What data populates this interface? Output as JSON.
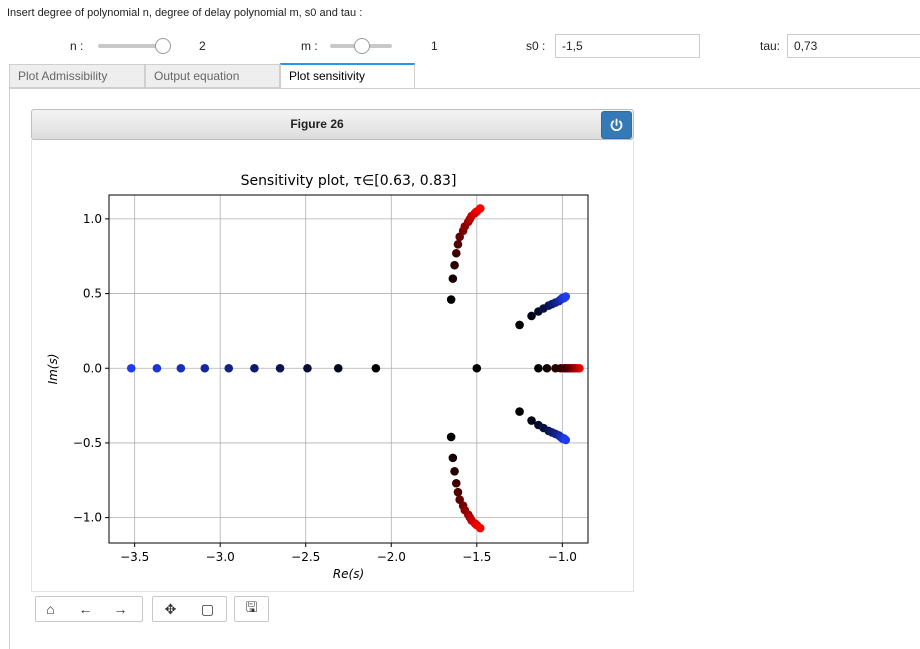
{
  "instruction": "Insert degree of polynomial n, degree of delay polynomial m, s0 and tau :",
  "controls": {
    "n_label": "n :",
    "n_value": "2",
    "m_label": "m :",
    "m_value": "1",
    "s0_label": "s0 :",
    "s0_value": "-1,5",
    "tau_label": "tau:",
    "tau_value": "0,73",
    "n_slider_fraction": 1.0,
    "m_slider_fraction": 0.5
  },
  "tabs": [
    {
      "label": "Plot Admissibility",
      "active": false
    },
    {
      "label": "Output equation",
      "active": false
    },
    {
      "label": "Plot sensitivity",
      "active": true
    }
  ],
  "figure": {
    "title": "Figure 26",
    "power_icon": "power-icon"
  },
  "toolbar": [
    {
      "name": "home-icon",
      "glyph": "⌂"
    },
    {
      "name": "back-icon",
      "glyph": "←"
    },
    {
      "name": "forward-icon",
      "glyph": "→"
    },
    {
      "name": "pan-icon",
      "glyph": "✥"
    },
    {
      "name": "zoom-rect-icon",
      "glyph": "▢"
    },
    {
      "name": "save-icon",
      "glyph": "🖫"
    }
  ],
  "chart_data": {
    "type": "scatter",
    "title": "Sensitivity plot, τ∈[0.63, 0.83]",
    "xlabel": "Re(s)",
    "ylabel": "Im(s)",
    "xlim": [
      -3.65,
      -0.85
    ],
    "ylim": [
      -1.17,
      1.16
    ],
    "xticks": [
      -3.5,
      -3.0,
      -2.5,
      -2.0,
      -1.5,
      -1.0
    ],
    "xtick_labels": [
      "−3.5",
      "−3.0",
      "−2.5",
      "−2.0",
      "−1.5",
      "−1.0"
    ],
    "yticks": [
      -1.0,
      -0.5,
      0.0,
      0.5,
      1.0
    ],
    "ytick_labels": [
      "−1.0",
      "−0.5",
      "0.0",
      "0.5",
      "1.0"
    ],
    "grid": true,
    "colors": {
      "low_tau": "#000000",
      "red_end": "#ff0000",
      "blue_end": "#1f3cf0"
    },
    "series": [
      {
        "color_family": "blue",
        "x": [
          -3.52,
          -3.37,
          -3.23,
          -3.09,
          -2.95,
          -2.8,
          -2.65,
          -2.49,
          -2.31,
          -2.09
        ],
        "y": [
          0,
          0,
          0,
          0,
          0,
          0,
          0,
          0,
          0,
          0
        ]
      },
      {
        "color_family": "red",
        "x": [
          -0.9,
          -0.91,
          -0.92,
          -0.93,
          -0.94,
          -0.95,
          -0.96,
          -0.97,
          -0.98,
          -0.99,
          -1.01,
          -1.04,
          -1.09,
          -1.14
        ],
        "y": [
          0,
          0,
          0,
          0,
          0,
          0,
          0,
          0,
          0,
          0,
          0,
          0,
          0,
          0
        ]
      },
      {
        "color_family": "black",
        "x": [
          -1.5
        ],
        "y": [
          0
        ]
      },
      {
        "color_family": "red",
        "x": [
          -1.65,
          -1.64,
          -1.63,
          -1.62,
          -1.61,
          -1.6,
          -1.58,
          -1.57,
          -1.55,
          -1.54,
          -1.53,
          -1.51,
          -1.5,
          -1.48
        ],
        "y": [
          0.46,
          0.6,
          0.69,
          0.77,
          0.83,
          0.88,
          0.92,
          0.95,
          0.98,
          1.0,
          1.02,
          1.04,
          1.05,
          1.07
        ]
      },
      {
        "color_family": "red",
        "x": [
          -1.65,
          -1.64,
          -1.63,
          -1.62,
          -1.61,
          -1.6,
          -1.58,
          -1.57,
          -1.55,
          -1.54,
          -1.53,
          -1.51,
          -1.5,
          -1.48
        ],
        "y": [
          -0.46,
          -0.6,
          -0.69,
          -0.77,
          -0.83,
          -0.88,
          -0.92,
          -0.95,
          -0.98,
          -1.0,
          -1.02,
          -1.04,
          -1.05,
          -1.07
        ]
      },
      {
        "color_family": "blue",
        "x": [
          -1.25,
          -1.18,
          -1.14,
          -1.11,
          -1.08,
          -1.06,
          -1.04,
          -1.02,
          -1.01,
          -1.0,
          -0.99,
          -0.98
        ],
        "y": [
          0.29,
          0.35,
          0.38,
          0.4,
          0.42,
          0.43,
          0.44,
          0.45,
          0.46,
          0.47,
          0.47,
          0.48
        ]
      },
      {
        "color_family": "blue",
        "x": [
          -1.25,
          -1.18,
          -1.14,
          -1.11,
          -1.08,
          -1.06,
          -1.04,
          -1.02,
          -1.01,
          -1.0,
          -0.99,
          -0.98
        ],
        "y": [
          -0.29,
          -0.35,
          -0.38,
          -0.4,
          -0.42,
          -0.43,
          -0.44,
          -0.45,
          -0.46,
          -0.47,
          -0.47,
          -0.48
        ]
      }
    ]
  }
}
